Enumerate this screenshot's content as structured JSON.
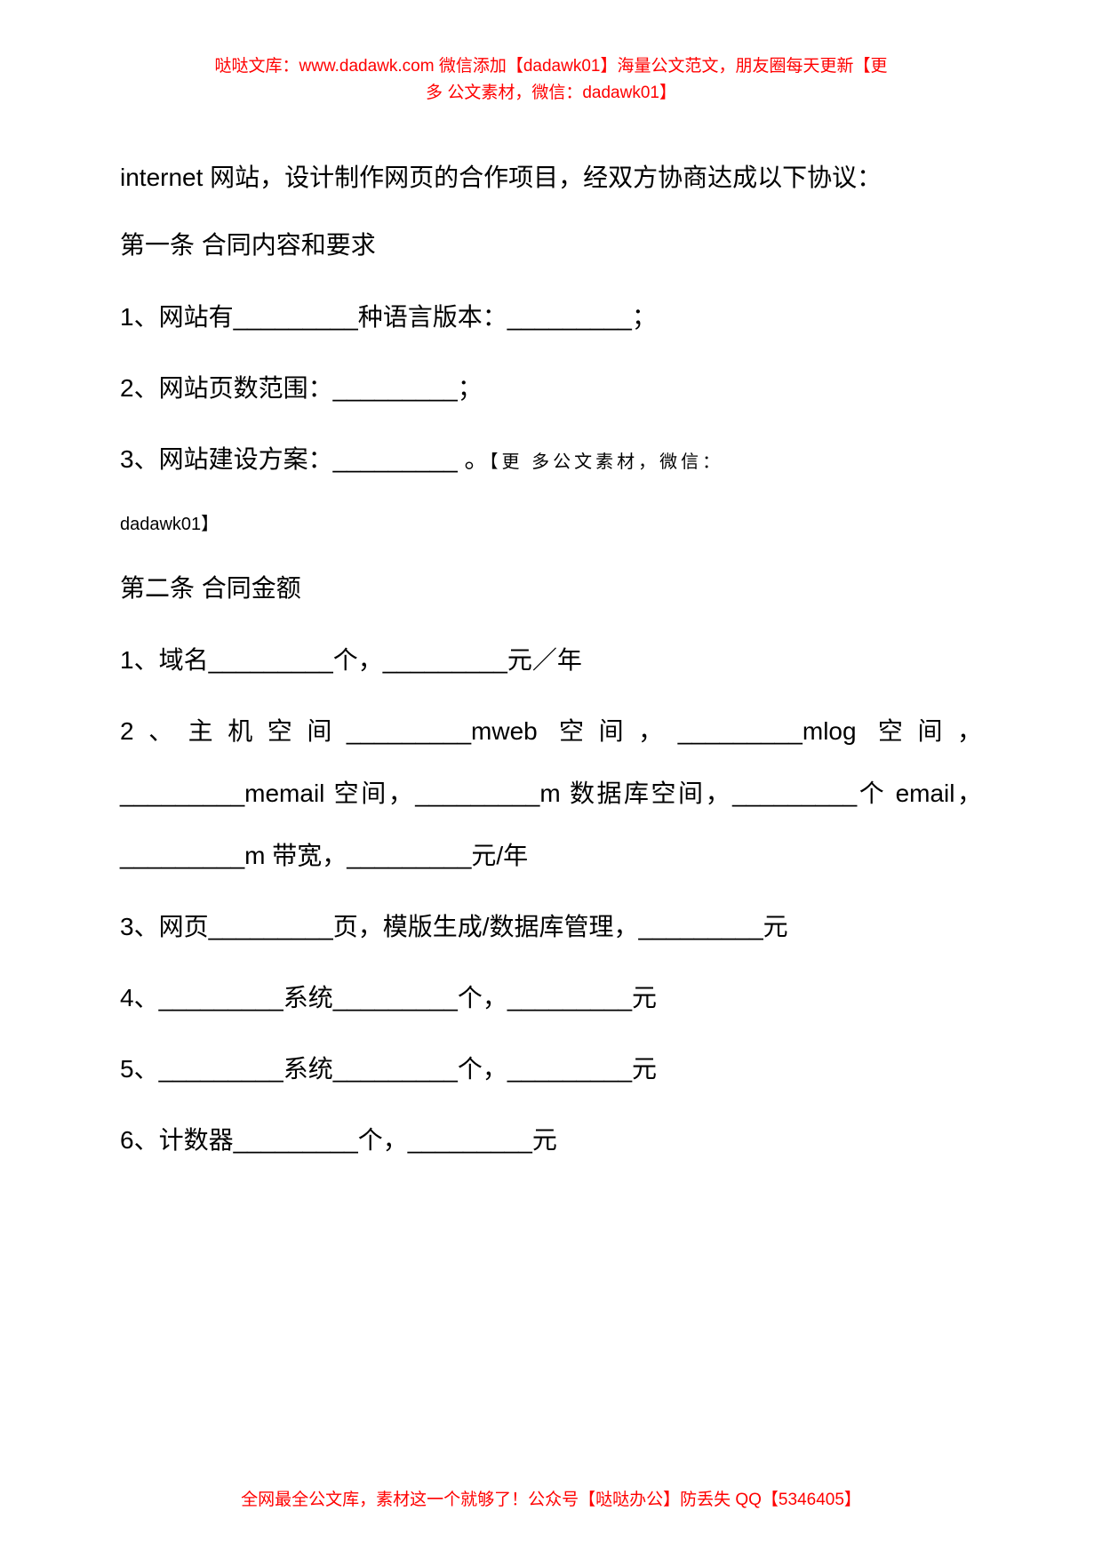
{
  "colors": {
    "background": "#ffffff",
    "body_text": "#000000",
    "note_text": "#ff0000"
  },
  "typography": {
    "body_fontsize": 28,
    "note_fontsize": 19,
    "inline_note_fontsize": 20,
    "line_height_body": 2.1,
    "line_height_item": 2.5
  },
  "header": {
    "line1": "哒哒文库：www.dadawk.com  微信添加【dadawk01】海量公文范文，朋友圈每天更新【更",
    "line2": "多 公文素材，微信：dadawk01】"
  },
  "intro": "internet 网站，设计制作网页的合作项目，经双方协商达成以下协议：",
  "section1": {
    "heading": "第一条 合同内容和要求",
    "item1": "1、网站有_________种语言版本：_________；",
    "item2": "2、网站页数范围：_________；",
    "item3_main": "3、网站建设方案：_________ 。",
    "item3_note_a": "【更  多公文素材，微信：",
    "item3_note_b": "dadawk01】"
  },
  "section2": {
    "heading": "第二条 合同金额",
    "item1": "1、域名_________个，_________元／年",
    "item2": "2、主机空间_________mweb 空间，_________mlog 空间，_________memail 空间，_________m 数据库空间，_________个 email，_________m 带宽，_________元/年",
    "item3": "3、网页_________页，模版生成/数据库管理，_________元",
    "item4": "4、_________系统_________个，_________元",
    "item5": "5、_________系统_________个，_________元",
    "item6": "6、计数器_________个，_________元"
  },
  "footer": "全网最全公文库，素材这一个就够了！公众号【哒哒办公】防丢失 QQ【5346405】"
}
